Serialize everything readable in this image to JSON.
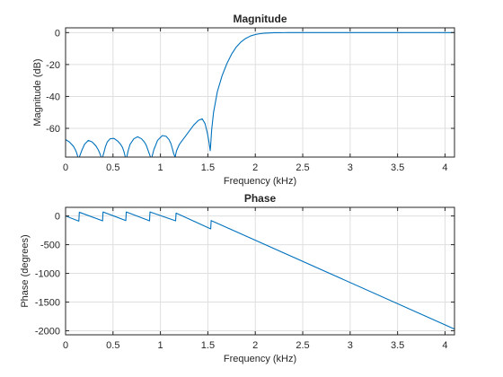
{
  "chart_data": [
    {
      "type": "line",
      "title": "Magnitude",
      "xlabel": "Frequency (kHz)",
      "ylabel": "Magnitude (dB)",
      "xlim": [
        0,
        4.1
      ],
      "ylim": [
        -78,
        3
      ],
      "xticks": [
        0,
        0.5,
        1,
        1.5,
        2,
        2.5,
        3,
        3.5,
        4
      ],
      "xtick_labels": [
        "0",
        "0.5",
        "1",
        "1.5",
        "2",
        "2.5",
        "3",
        "3.5",
        "4"
      ],
      "yticks": [
        0,
        -20,
        -40,
        -60
      ],
      "ytick_labels": [
        "0",
        "-20",
        "-40",
        "-60"
      ],
      "grid": true,
      "color": "#0072bd",
      "series": [
        {
          "x": [
            0,
            0.04,
            0.08,
            0.1,
            0.115,
            0.13,
            0.145,
            0.17,
            0.2,
            0.24,
            0.28,
            0.32,
            0.345,
            0.36,
            0.375,
            0.39,
            0.405,
            0.42,
            0.44,
            0.47,
            0.51,
            0.55,
            0.58,
            0.6,
            0.615,
            0.63,
            0.645,
            0.66,
            0.68,
            0.72,
            0.76,
            0.8,
            0.83,
            0.85,
            0.865,
            0.88,
            0.895,
            0.91,
            0.93,
            0.97,
            1.02,
            1.06,
            1.09,
            1.11,
            1.125,
            1.14,
            1.155,
            1.17,
            1.2,
            1.25,
            1.3,
            1.35,
            1.4,
            1.44,
            1.47,
            1.495,
            1.51,
            1.525,
            1.53,
            1.54,
            1.56,
            1.6,
            1.65,
            1.7,
            1.75,
            1.8,
            1.85,
            1.9,
            1.95,
            2.0,
            2.05,
            2.1,
            2.15,
            2.2,
            2.25,
            2.3,
            2.35,
            2.4,
            2.5,
            2.8,
            3.1,
            3.4,
            3.7,
            4.1
          ],
          "y": [
            -67,
            -68.5,
            -71,
            -73,
            -75,
            -78,
            -78,
            -74,
            -70,
            -67.5,
            -68.5,
            -71,
            -73.5,
            -75.5,
            -78,
            -78,
            -75,
            -71.5,
            -68.5,
            -66.5,
            -66.3,
            -68,
            -70,
            -72,
            -74.5,
            -78,
            -78,
            -74,
            -70,
            -66.5,
            -65.3,
            -66.5,
            -68.5,
            -70.5,
            -73,
            -75.5,
            -78,
            -78,
            -73.5,
            -67.5,
            -64.5,
            -65,
            -67,
            -69.5,
            -72.5,
            -76,
            -78,
            -74,
            -70,
            -66,
            -62,
            -58,
            -55,
            -54,
            -57,
            -63,
            -68,
            -74,
            -70,
            -61,
            -50,
            -37,
            -27,
            -19.5,
            -13.5,
            -9,
            -5.8,
            -3.6,
            -2.1,
            -1.2,
            -0.65,
            -0.35,
            -0.18,
            -0.08,
            -0.04,
            -0.02,
            -0.01,
            0,
            0,
            0,
            0,
            0,
            0,
            0
          ]
        }
      ]
    },
    {
      "type": "line",
      "title": "Phase",
      "xlabel": "Frequency (kHz)",
      "ylabel": "Phase (degrees)",
      "xlim": [
        0,
        4.1
      ],
      "ylim": [
        -2070,
        150
      ],
      "xticks": [
        0,
        0.5,
        1,
        1.5,
        2,
        2.5,
        3,
        3.5,
        4
      ],
      "xtick_labels": [
        "0",
        "0.5",
        "1",
        "1.5",
        "2",
        "2.5",
        "3",
        "3.5",
        "4"
      ],
      "yticks": [
        0,
        -500,
        -1000,
        -1500,
        -2000
      ],
      "ytick_labels": [
        "0",
        "-500",
        "-1000",
        "-1500",
        "-2000"
      ],
      "grid": true,
      "color": "#0072bd",
      "series": [
        {
          "x": [
            0,
            0.14,
            0.145,
            0.39,
            0.395,
            0.635,
            0.64,
            0.885,
            0.89,
            1.16,
            1.165,
            1.53,
            1.535,
            4.1
          ],
          "y": [
            0,
            -90,
            65,
            -85,
            70,
            -80,
            70,
            -85,
            70,
            -85,
            50,
            -225,
            -80,
            -1970
          ]
        }
      ]
    }
  ]
}
